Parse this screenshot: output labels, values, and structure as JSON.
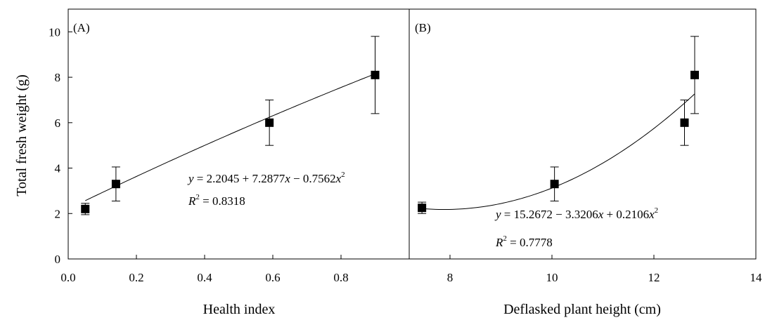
{
  "chart_data": {
    "type": "scatter",
    "ylabel": "Total fresh weight (g)",
    "ylim": [
      0,
      11
    ],
    "yticks": [
      "0",
      "2",
      "4",
      "6",
      "8",
      "10"
    ],
    "grid": false,
    "panels": [
      {
        "label": "(A)",
        "xlabel": "Health index",
        "xlim": [
          0.0,
          1.0
        ],
        "xticks": [
          "0.0",
          "0.2",
          "0.4",
          "0.6",
          "0.8"
        ],
        "points": [
          {
            "x": 0.05,
            "y": 2.2,
            "err": 0.25
          },
          {
            "x": 0.14,
            "y": 3.3,
            "err": 0.75
          },
          {
            "x": 0.59,
            "y": 6.0,
            "err": 1.0
          },
          {
            "x": 0.9,
            "y": 8.1,
            "err": 1.7
          }
        ],
        "fit": {
          "type": "quadratic",
          "coefficients": [
            2.2045,
            7.2877,
            -0.7562
          ],
          "x_range": [
            0.05,
            0.9
          ]
        },
        "equation": {
          "y": "y",
          "eq": " = 2.2045 + 7.2877",
          "x": "x",
          "mid": " − 0.7562",
          "x2": "x",
          "sup": "2"
        },
        "r2": {
          "r": "R",
          "sup": "2",
          "eq": " = 0.8318"
        }
      },
      {
        "label": "(B)",
        "xlabel": "Deflasked plant height (cm)",
        "xlim": [
          7.2,
          14
        ],
        "xticks": [
          "8",
          "10",
          "12",
          "14"
        ],
        "points": [
          {
            "x": 7.45,
            "y": 2.25,
            "err": 0.25
          },
          {
            "x": 10.05,
            "y": 3.3,
            "err": 0.75
          },
          {
            "x": 12.6,
            "y": 6.0,
            "err": 1.0
          },
          {
            "x": 12.8,
            "y": 8.1,
            "err": 1.7
          }
        ],
        "fit": {
          "type": "quadratic",
          "coefficients": [
            15.2672,
            -3.3206,
            0.2106
          ],
          "x_range": [
            7.45,
            12.8
          ]
        },
        "equation": {
          "y": "y",
          "eq": " = 15.2672 − 3.3206",
          "x": "x",
          "mid": " + 0.2106",
          "x2": "x",
          "sup": "2"
        },
        "r2": {
          "r": "R",
          "sup": "2",
          "eq": " = 0.7778"
        }
      }
    ]
  }
}
